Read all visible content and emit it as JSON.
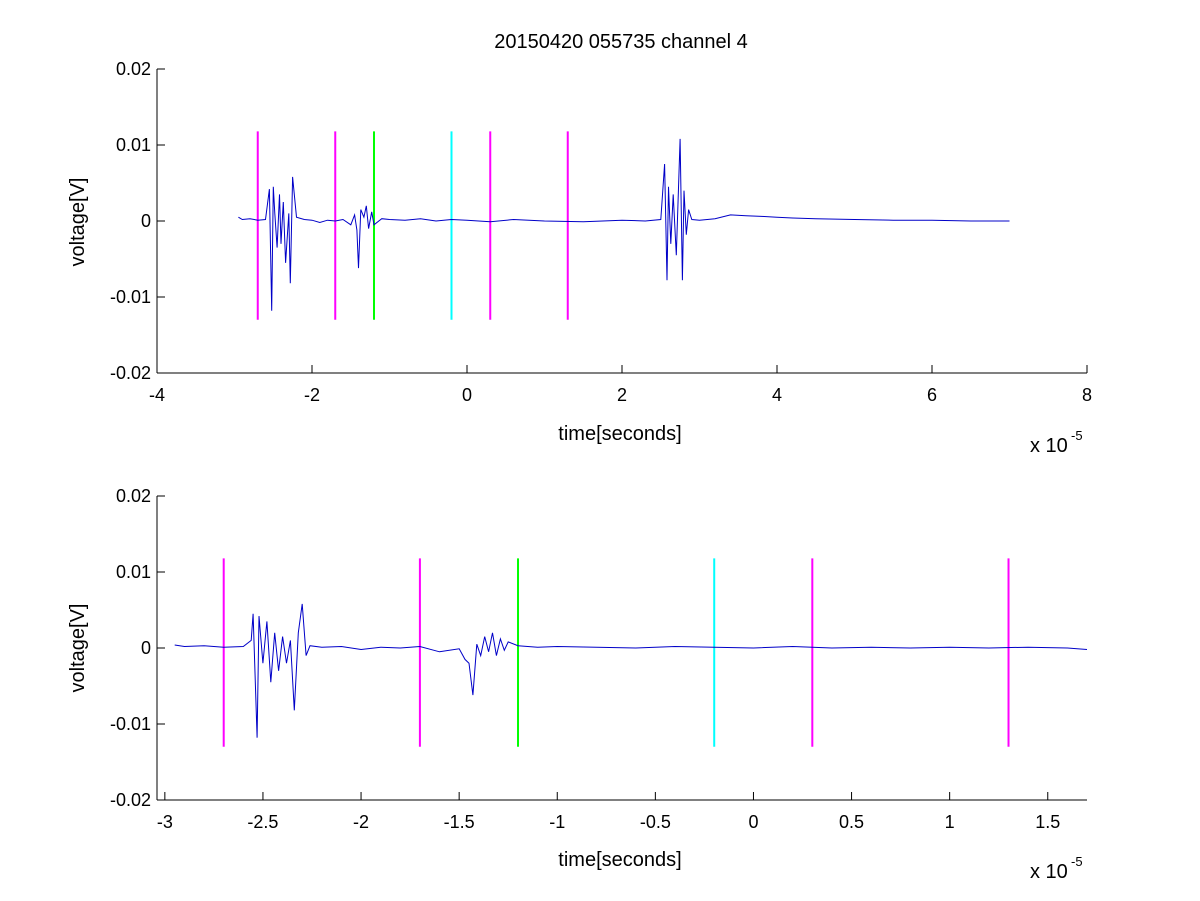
{
  "title": "20150420 055735 channel 4",
  "colors": {
    "trace": "#0000c8",
    "magenta": "#ff00ff",
    "green": "#00ff00",
    "cyan": "#00ffff",
    "axes": "#000000",
    "background": "#ffffff"
  },
  "chart_data": [
    {
      "type": "line",
      "xlabel": "time[seconds]",
      "ylabel": "voltage[V]",
      "x_multiplier": "x 10",
      "x_multiplier_exp": "-5",
      "xlim": [
        -4,
        8
      ],
      "ylim": [
        -0.02,
        0.02
      ],
      "xticks": [
        -4,
        -2,
        0,
        2,
        4,
        6,
        8
      ],
      "xtick_labels": [
        "-4",
        "-2",
        "0",
        "2",
        "4",
        "6",
        "8"
      ],
      "yticks": [
        -0.02,
        -0.01,
        0,
        0.01,
        0.02
      ],
      "ytick_labels": [
        "-0.02",
        "-0.01",
        "0",
        "0.01",
        "0.02"
      ],
      "grid": false,
      "series": [
        {
          "x": [
            -2.95,
            -2.9,
            -2.8,
            -2.7,
            -2.6,
            -2.55,
            -2.52,
            -2.5,
            -2.48,
            -2.45,
            -2.42,
            -2.4,
            -2.37,
            -2.34,
            -2.3,
            -2.28,
            -2.25,
            -2.2,
            -2.1,
            -2.0,
            -1.9,
            -1.8,
            -1.7,
            -1.6,
            -1.5,
            -1.45,
            -1.42,
            -1.4,
            -1.37,
            -1.33,
            -1.3,
            -1.27,
            -1.23,
            -1.2,
            -1.1,
            -1.0,
            -0.8,
            -0.6,
            -0.4,
            -0.2,
            0.0,
            0.3,
            0.6,
            1.0,
            1.5,
            2.0,
            2.3,
            2.5,
            2.55,
            2.58,
            2.6,
            2.63,
            2.66,
            2.7,
            2.75,
            2.78,
            2.8,
            2.83,
            2.86,
            2.9,
            3.0,
            3.2,
            3.4,
            3.6,
            3.8,
            4.0,
            4.2,
            4.5,
            5.0,
            5.5,
            6.0,
            6.5,
            7.0
          ],
          "y": [
            0.0005,
            0.0002,
            0.0003,
            0.0001,
            0.0002,
            0.0042,
            -0.0118,
            0.0045,
            0.001,
            -0.0035,
            0.0035,
            -0.003,
            0.0025,
            -0.0055,
            0.001,
            -0.0082,
            0.0058,
            0.0005,
            0.0002,
            0.0001,
            -0.0002,
            0.0001,
            0.0,
            0.0002,
            -0.0005,
            0.0008,
            -0.0012,
            -0.0062,
            0.0015,
            0.0005,
            0.002,
            -0.001,
            0.0012,
            -0.0005,
            0.0003,
            0.0002,
            0.0001,
            0.0003,
            0.0,
            0.0002,
            0.0001,
            -0.0001,
            0.0002,
            0.0,
            -0.0001,
            0.0001,
            0.0,
            0.0002,
            0.0075,
            -0.0078,
            0.0045,
            -0.003,
            0.0035,
            -0.0045,
            0.0108,
            -0.0078,
            0.004,
            -0.0018,
            0.0015,
            0.0002,
            0.0001,
            0.0003,
            0.0008,
            0.0007,
            0.0006,
            0.0005,
            0.0004,
            0.0003,
            0.0002,
            0.0001,
            0.0001,
            0.0,
            0.0
          ]
        }
      ],
      "markers": [
        {
          "x": -2.7,
          "color": "magenta"
        },
        {
          "x": -1.7,
          "color": "magenta"
        },
        {
          "x": -1.2,
          "color": "green"
        },
        {
          "x": -0.2,
          "color": "cyan"
        },
        {
          "x": 0.3,
          "color": "magenta"
        },
        {
          "x": 1.3,
          "color": "magenta"
        }
      ],
      "marker_range": [
        -0.013,
        0.0118
      ]
    },
    {
      "type": "line",
      "xlabel": "time[seconds]",
      "ylabel": "voltage[V]",
      "x_multiplier": "x 10",
      "x_multiplier_exp": "-5",
      "xlim": [
        -3.04,
        1.7
      ],
      "ylim": [
        -0.02,
        0.02
      ],
      "xticks": [
        -3,
        -2.5,
        -2,
        -1.5,
        -1,
        -0.5,
        0,
        0.5,
        1,
        1.5
      ],
      "xtick_labels": [
        "-3",
        "-2.5",
        "-2",
        "-1.5",
        "-1",
        "-0.5",
        "0",
        "0.5",
        "1",
        "1.5"
      ],
      "yticks": [
        -0.02,
        -0.01,
        0,
        0.01,
        0.02
      ],
      "ytick_labels": [
        "-0.02",
        "-0.01",
        "0",
        "0.01",
        "0.02"
      ],
      "grid": false,
      "series": [
        {
          "x": [
            -2.95,
            -2.9,
            -2.8,
            -2.7,
            -2.6,
            -2.56,
            -2.55,
            -2.53,
            -2.52,
            -2.5,
            -2.48,
            -2.46,
            -2.44,
            -2.42,
            -2.4,
            -2.38,
            -2.36,
            -2.34,
            -2.32,
            -2.3,
            -2.28,
            -2.26,
            -2.2,
            -2.1,
            -2.0,
            -1.9,
            -1.8,
            -1.7,
            -1.6,
            -1.5,
            -1.47,
            -1.45,
            -1.43,
            -1.41,
            -1.39,
            -1.37,
            -1.35,
            -1.33,
            -1.31,
            -1.29,
            -1.27,
            -1.25,
            -1.2,
            -1.1,
            -1.0,
            -0.8,
            -0.6,
            -0.4,
            -0.2,
            0.0,
            0.2,
            0.4,
            0.6,
            0.8,
            1.0,
            1.2,
            1.4,
            1.6,
            1.7
          ],
          "y": [
            0.0004,
            0.0002,
            0.0003,
            0.0001,
            0.0002,
            0.001,
            0.0045,
            -0.0118,
            0.0042,
            -0.002,
            0.0035,
            -0.0045,
            0.002,
            -0.003,
            0.0015,
            -0.002,
            0.001,
            -0.0082,
            0.002,
            0.0058,
            -0.001,
            0.0003,
            0.0001,
            0.0002,
            -0.0002,
            0.0001,
            0.0,
            0.0002,
            -0.0005,
            -0.0001,
            -0.0015,
            -0.002,
            -0.0062,
            0.0005,
            -0.001,
            0.0015,
            -0.0005,
            0.002,
            -0.001,
            0.0012,
            -0.0003,
            0.0008,
            0.0003,
            0.0001,
            0.0002,
            0.0001,
            0.0,
            0.0002,
            0.0001,
            0.0,
            0.0002,
            0.0,
            0.0001,
            0.0,
            0.0001,
            0.0,
            0.0001,
            0.0,
            -0.0002
          ]
        }
      ],
      "markers": [
        {
          "x": -2.7,
          "color": "magenta"
        },
        {
          "x": -1.7,
          "color": "magenta"
        },
        {
          "x": -1.2,
          "color": "green"
        },
        {
          "x": -0.2,
          "color": "cyan"
        },
        {
          "x": 0.3,
          "color": "magenta"
        },
        {
          "x": 1.3,
          "color": "magenta"
        }
      ],
      "marker_range": [
        -0.013,
        0.0118
      ]
    }
  ]
}
